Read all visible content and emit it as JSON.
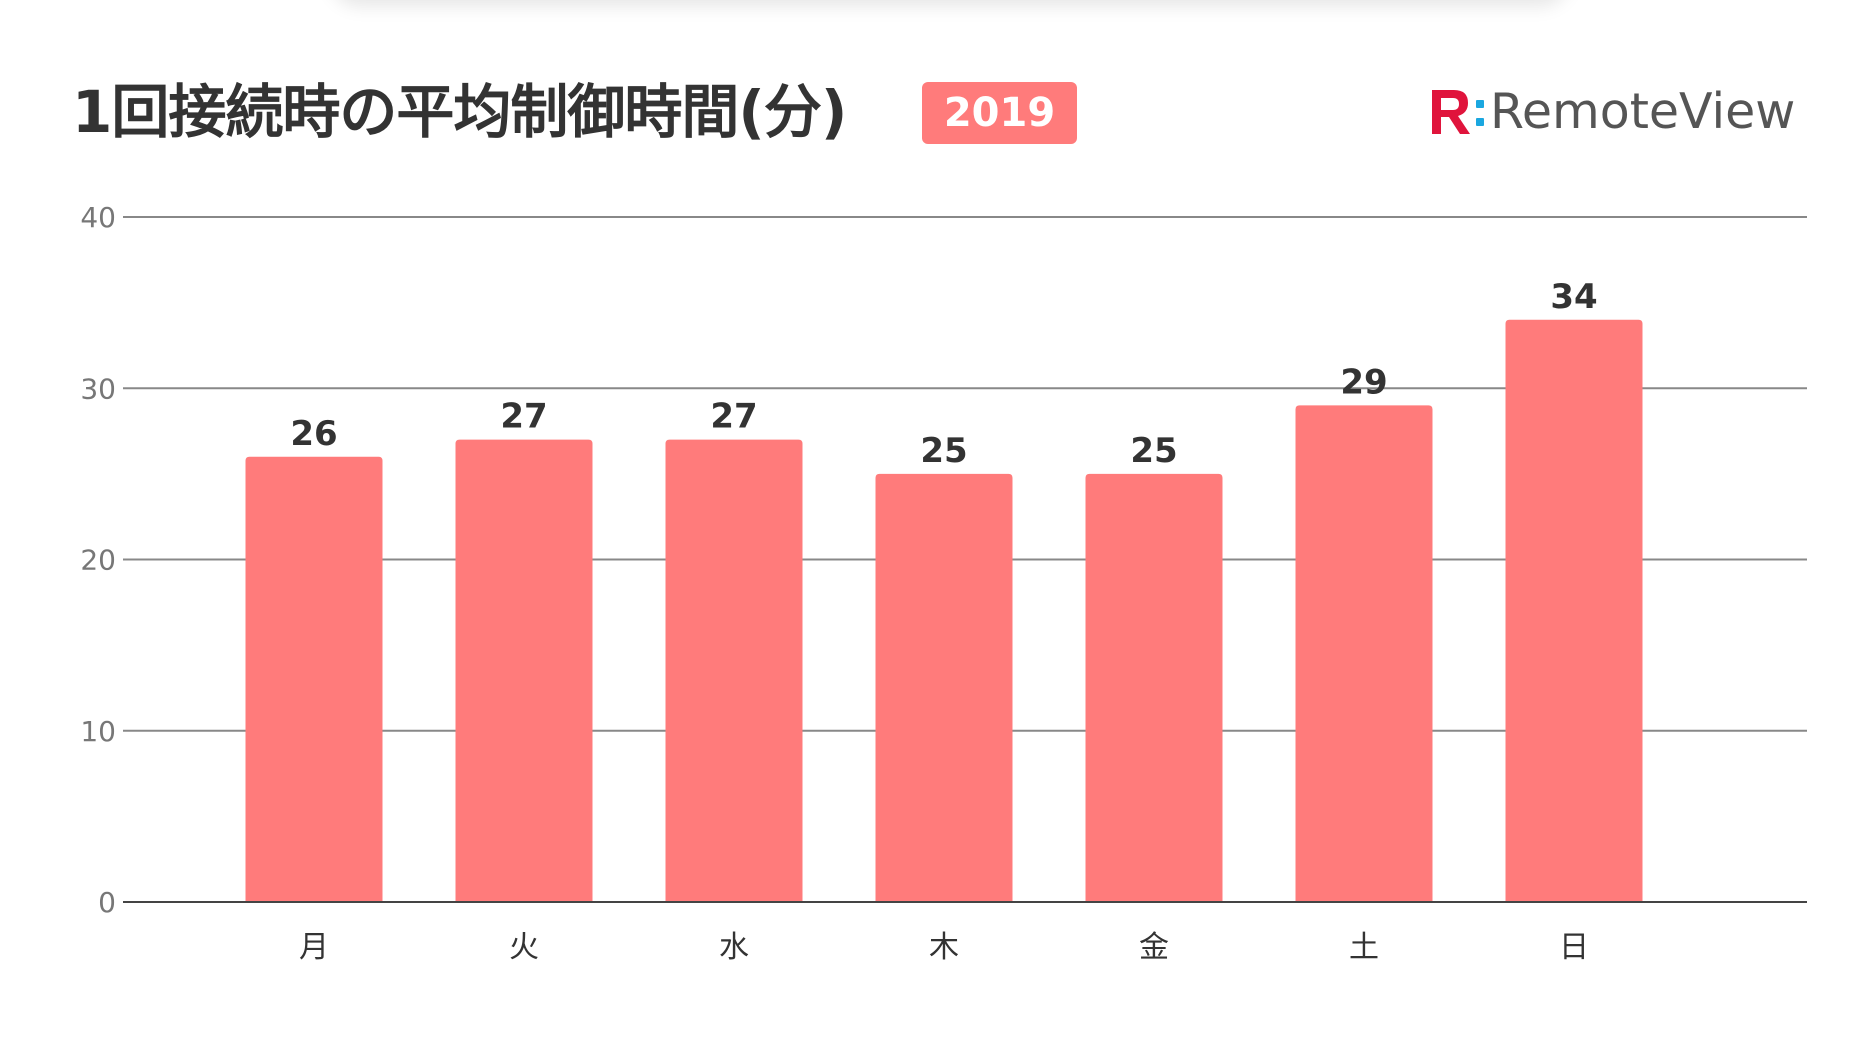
{
  "header": {
    "title": "1回接続時の平均制御時間(分)",
    "year_badge": "2019"
  },
  "logo": {
    "text": "RemoteView",
    "mark_icon": "remoteview-r-logo-icon"
  },
  "colors": {
    "bar": "#FF7B7B",
    "badge": "#FF7B7B",
    "logo_red": "#E0143C",
    "logo_blue": "#1AA7E0",
    "grid": "#888888",
    "axis": "#444444"
  },
  "chart_data": {
    "type": "bar",
    "title": "1回接続時の平均制御時間(分)",
    "categories": [
      "月",
      "火",
      "水",
      "木",
      "金",
      "土",
      "日"
    ],
    "values": [
      26,
      27,
      27,
      25,
      25,
      29,
      34
    ],
    "data_labels": [
      "26",
      "27",
      "27",
      "25",
      "25",
      "29",
      "34"
    ],
    "ylim": [
      0,
      40
    ],
    "yticks": [
      0,
      10,
      20,
      30,
      40
    ],
    "grid": true,
    "legend": "none"
  }
}
